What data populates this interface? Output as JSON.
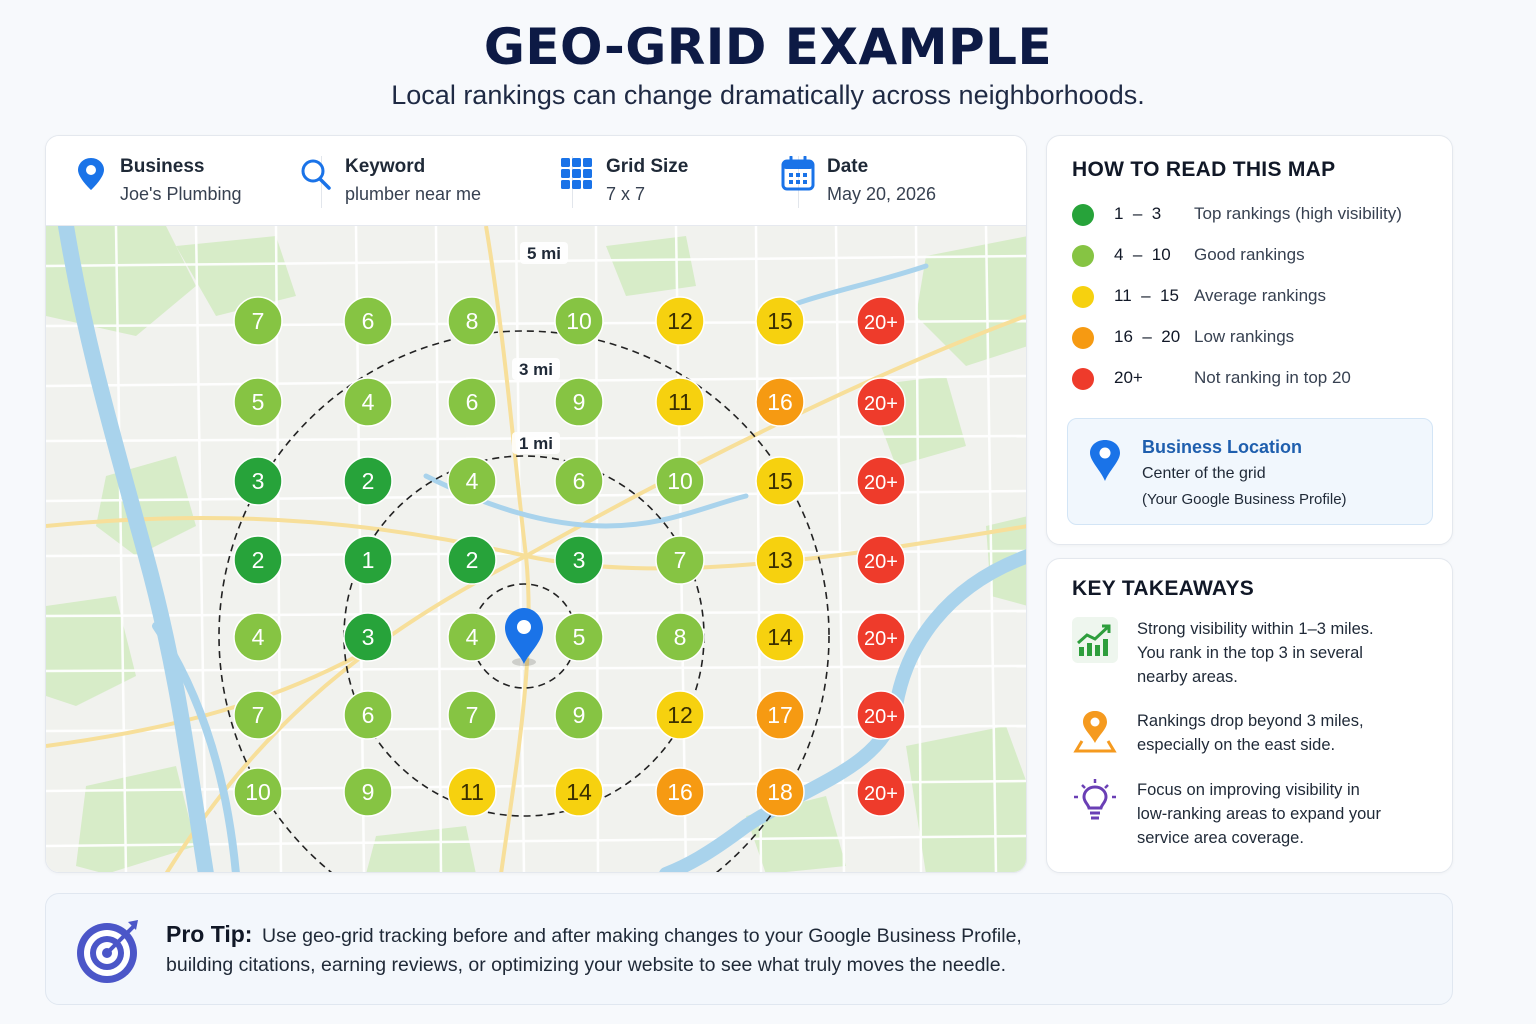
{
  "header": {
    "title": "GEO-GRID EXAMPLE",
    "subtitle": "Local rankings can change dramatically across neighborhoods."
  },
  "info_bar": [
    {
      "label": "Business",
      "value": "Joe's Plumbing",
      "icon": "location-pin-icon"
    },
    {
      "label": "Keyword",
      "value": "plumber near me",
      "icon": "search-icon"
    },
    {
      "label": "Grid Size",
      "value": "7 x 7",
      "icon": "grid-icon"
    },
    {
      "label": "Date",
      "value": "May 20, 2026",
      "icon": "calendar-icon"
    }
  ],
  "map": {
    "rings": [
      {
        "label": "1 mi"
      },
      {
        "label": "3 mi"
      },
      {
        "label": "5 mi"
      }
    ],
    "grid": [
      [
        "7",
        "6",
        "8",
        "10",
        "12",
        "15",
        "20+"
      ],
      [
        "5",
        "4",
        "6",
        "9",
        "11",
        "16",
        "20+"
      ],
      [
        "3",
        "2",
        "4",
        "6",
        "10",
        "15",
        "20+"
      ],
      [
        "2",
        "1",
        "2",
        "3",
        "7",
        "13",
        "20+"
      ],
      [
        "4",
        "3",
        "4",
        "5",
        "8",
        "14",
        "20+"
      ],
      [
        "7",
        "6",
        "7",
        "9",
        "12",
        "17",
        "20+"
      ],
      [
        "10",
        "9",
        "11",
        "14",
        "16",
        "18",
        "20+"
      ]
    ]
  },
  "legend": {
    "title": "HOW TO READ THIS MAP",
    "items": [
      {
        "range": "1  –  3",
        "desc": "Top rankings (high visibility)",
        "color": "#27a33a"
      },
      {
        "range": "4  –  10",
        "desc": "Good rankings",
        "color": "#86c443"
      },
      {
        "range": "11  –  15",
        "desc": "Average rankings",
        "color": "#f6d10f"
      },
      {
        "range": "16  –  20",
        "desc": "Low rankings",
        "color": "#f69a12"
      },
      {
        "range": "20+",
        "desc": "Not ranking in top 20",
        "color": "#ee3b2b"
      }
    ],
    "location": {
      "title": "Business Location",
      "line1": "Center of the grid",
      "line2": "(Your Google Business Profile)"
    }
  },
  "takeaways": {
    "title": "KEY TAKEAWAYS",
    "items": [
      {
        "icon": "trending-up-chart-icon",
        "lines": [
          "Strong visibility within 1–3 miles.",
          "You rank in the top 3 in several",
          "nearby areas."
        ]
      },
      {
        "icon": "location-pin-icon",
        "lines": [
          "Rankings drop beyond 3 miles,",
          "especially on the east side."
        ]
      },
      {
        "icon": "lightbulb-icon",
        "lines": [
          "Focus on improving visibility in",
          "low-ranking areas to expand your",
          "service area coverage."
        ]
      }
    ]
  },
  "tip": {
    "label": "Pro Tip:",
    "line1": "Use geo-grid tracking before and after making changes to your Google Business Profile,",
    "line2": "building citations, earning reviews, or optimizing your website to see what truly moves the needle."
  },
  "colors": {
    "rank_1_3": "#27a33a",
    "rank_4_10": "#86c443",
    "rank_11_15": "#f6d10f",
    "rank_16_20": "#f69a12",
    "rank_20_plus": "#ee3b2b",
    "pin": "#1a73e8",
    "title": "#0d1a45"
  }
}
